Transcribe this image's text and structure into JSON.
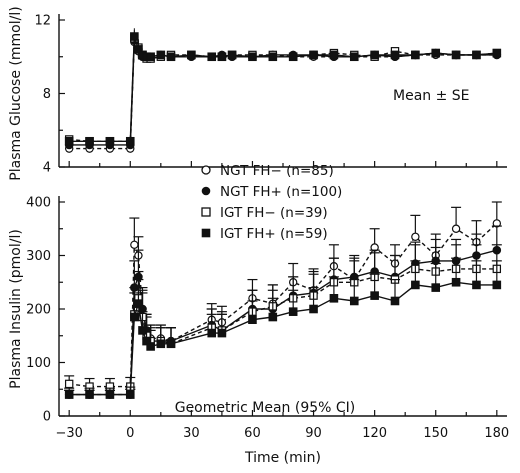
{
  "chart_data": [
    {
      "type": "line",
      "ylabel": "Plasma Glucose (mmol/l)",
      "ylim": [
        4,
        12
      ],
      "yticks": [
        4,
        8,
        12
      ],
      "xlim": [
        -35,
        185
      ],
      "annotation": "Mean ± SE",
      "x": [
        -30,
        -20,
        -10,
        0,
        2,
        4,
        6,
        8,
        10,
        15,
        20,
        30,
        40,
        45,
        50,
        60,
        70,
        80,
        90,
        100,
        110,
        120,
        130,
        140,
        150,
        160,
        170,
        180
      ],
      "series": [
        {
          "name": "NGT FH− (n=85)",
          "marker": "open-circle",
          "dash": true,
          "values": [
            5.0,
            5.0,
            5.0,
            5.0,
            10.8,
            10.3,
            10.0,
            9.9,
            9.9,
            10.0,
            10.0,
            10.0,
            10.0,
            10.0,
            10.0,
            10.0,
            10.0,
            10.0,
            10.0,
            10.0,
            10.0,
            10.0,
            10.0,
            10.1,
            10.1,
            10.1,
            10.1,
            10.1
          ]
        },
        {
          "name": "NGT FH+ (n=100)",
          "marker": "filled-circle",
          "dash": false,
          "values": [
            5.2,
            5.2,
            5.2,
            5.2,
            10.9,
            10.4,
            10.0,
            10.0,
            10.0,
            10.1,
            10.0,
            10.0,
            10.0,
            10.1,
            10.0,
            10.0,
            10.1,
            10.1,
            10.1,
            10.0,
            10.0,
            10.1,
            10.0,
            10.1,
            10.2,
            10.1,
            10.1,
            10.1
          ]
        },
        {
          "name": "IGT FH− (n=39)",
          "marker": "open-square",
          "dash": true,
          "values": [
            5.5,
            5.4,
            5.4,
            5.4,
            11.0,
            10.5,
            10.1,
            9.9,
            9.9,
            10.0,
            10.1,
            10.1,
            10.0,
            10.0,
            10.1,
            10.1,
            10.1,
            10.0,
            10.1,
            10.2,
            10.1,
            10.0,
            10.3,
            10.1,
            10.2,
            10.1,
            10.1,
            10.2
          ]
        },
        {
          "name": "IGT FH+ (n=59)",
          "marker": "filled-square",
          "dash": false,
          "values": [
            5.4,
            5.4,
            5.4,
            5.4,
            11.1,
            10.4,
            10.1,
            10.0,
            10.0,
            10.1,
            10.0,
            10.1,
            10.0,
            10.0,
            10.1,
            10.0,
            10.0,
            10.0,
            10.1,
            10.1,
            10.0,
            10.1,
            10.1,
            10.1,
            10.2,
            10.1,
            10.1,
            10.2
          ]
        }
      ]
    },
    {
      "type": "line",
      "xlabel": "Time (min)",
      "ylabel": "Plasma Insulin (pmol/l)",
      "ylim": [
        0,
        400
      ],
      "yticks": [
        0,
        100,
        200,
        300,
        400
      ],
      "xlim": [
        -35,
        185
      ],
      "xticks": [
        -30,
        0,
        30,
        60,
        90,
        120,
        150,
        180
      ],
      "annotation": "Geometric Mean (95% CI)",
      "x": [
        -30,
        -20,
        -10,
        0,
        2,
        4,
        6,
        8,
        10,
        15,
        20,
        40,
        45,
        60,
        70,
        80,
        90,
        100,
        110,
        120,
        130,
        140,
        150,
        160,
        170,
        180
      ],
      "series": [
        {
          "name": "NGT FH− (n=85)",
          "marker": "open-circle",
          "dash": true,
          "values": [
            40,
            40,
            40,
            40,
            320,
            300,
            200,
            160,
            145,
            145,
            140,
            180,
            175,
            220,
            210,
            250,
            235,
            280,
            255,
            315,
            285,
            335,
            300,
            350,
            325,
            360
          ],
          "upper": [
            48,
            48,
            48,
            50,
            370,
            335,
            235,
            190,
            170,
            170,
            165,
            210,
            205,
            255,
            245,
            285,
            275,
            320,
            290,
            350,
            320,
            375,
            340,
            390,
            365,
            400
          ]
        },
        {
          "name": "NGT FH+ (n=100)",
          "marker": "filled-circle",
          "dash": false,
          "values": [
            40,
            40,
            40,
            40,
            240,
            260,
            200,
            160,
            140,
            140,
            140,
            170,
            160,
            200,
            200,
            225,
            230,
            255,
            260,
            270,
            260,
            285,
            290,
            290,
            300,
            310
          ],
          "upper": [
            48,
            48,
            48,
            50,
            290,
            310,
            240,
            190,
            165,
            165,
            165,
            200,
            190,
            235,
            235,
            260,
            270,
            295,
            300,
            310,
            300,
            325,
            330,
            330,
            340,
            355
          ]
        },
        {
          "name": "IGT FH− (n=39)",
          "marker": "open-square",
          "dash": true,
          "values": [
            60,
            55,
            55,
            55,
            190,
            220,
            185,
            150,
            140,
            140,
            135,
            165,
            160,
            195,
            205,
            220,
            225,
            250,
            250,
            260,
            255,
            275,
            270,
            275,
            275,
            275
          ],
          "upper": [
            75,
            70,
            70,
            72,
            240,
            270,
            230,
            185,
            170,
            170,
            165,
            200,
            195,
            235,
            245,
            260,
            265,
            295,
            295,
            305,
            300,
            320,
            315,
            320,
            320,
            320
          ]
        },
        {
          "name": "IGT FH+ (n=59)",
          "marker": "filled-square",
          "dash": false,
          "values": [
            40,
            40,
            40,
            40,
            185,
            210,
            160,
            140,
            130,
            135,
            135,
            155,
            155,
            180,
            185,
            195,
            200,
            220,
            215,
            225,
            215,
            245,
            240,
            250,
            245,
            245
          ],
          "upper": [
            52,
            52,
            52,
            54,
            230,
            255,
            195,
            170,
            160,
            165,
            165,
            190,
            190,
            215,
            220,
            235,
            240,
            260,
            255,
            265,
            255,
            290,
            285,
            295,
            290,
            290
          ]
        }
      ]
    }
  ]
}
